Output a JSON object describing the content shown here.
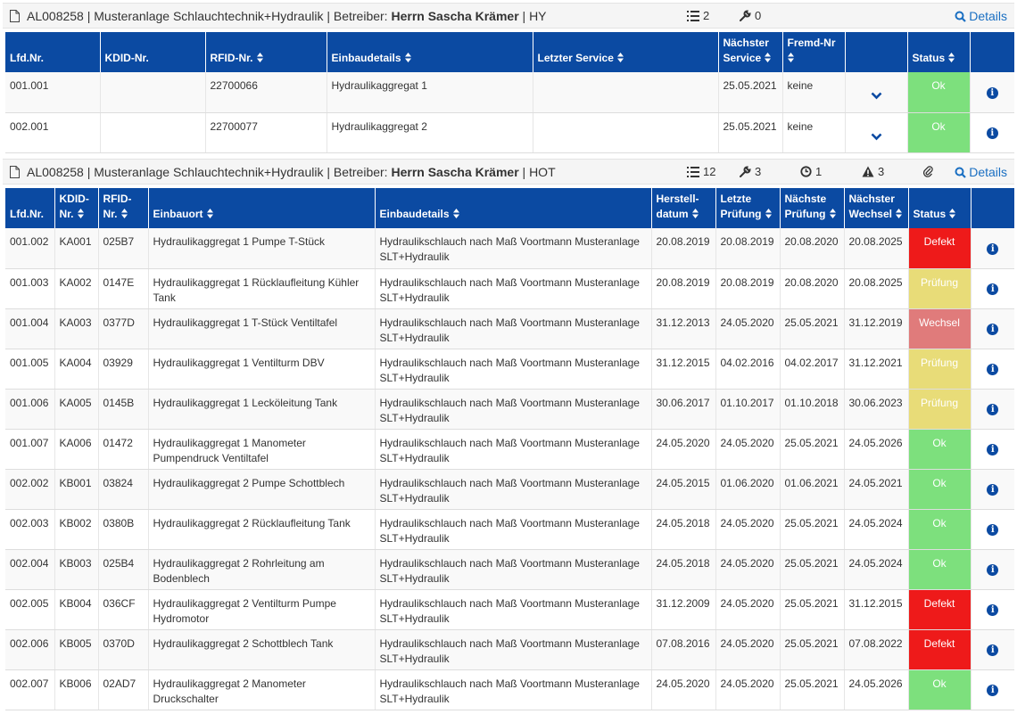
{
  "colors": {
    "header_bg": "#0b4aa2",
    "link": "#1a6fc2",
    "ok": "#7de07d",
    "defekt": "#ee1a1a",
    "pruefung": "#e8dc78",
    "wechsel": "#e07b7b"
  },
  "panel1": {
    "title_prefix": "AL008258 | Musteranlage Schlauchtechnik+Hydraulik | Betreiber: ",
    "operator": "Herrn Sascha Krämer",
    "title_suffix": " | HY",
    "list_count": "2",
    "wrench_count": "0",
    "details_label": "Details",
    "headers": [
      "Lfd.Nr.",
      "KDID-Nr.",
      "RFID-Nr.",
      "Einbaudetails",
      "Letzter Service",
      "Nächster Service",
      "Fremd-Nr",
      "",
      "Status",
      ""
    ],
    "rows": [
      {
        "lfd": "001.001",
        "kdid": "",
        "rfid": "22700066",
        "details": "Hydraulikaggregat 1",
        "last_service": "",
        "next_service": "25.05.2021",
        "fremd": "keine",
        "status": "Ok",
        "status_class": "ok"
      },
      {
        "lfd": "002.001",
        "kdid": "",
        "rfid": "22700077",
        "details": "Hydraulikaggregat 2",
        "last_service": "",
        "next_service": "25.05.2021",
        "fremd": "keine",
        "status": "Ok",
        "status_class": "ok"
      }
    ]
  },
  "panel2": {
    "title_prefix": "AL008258 | Musteranlage Schlauchtechnik+Hydraulik | Betreiber: ",
    "operator": "Herrn Sascha Krämer",
    "title_suffix": " | HOT",
    "list_count": "12",
    "wrench_count": "3",
    "clock_count": "1",
    "warn_count": "3",
    "details_label": "Details",
    "headers": [
      "Lfd.Nr.",
      "KDID-Nr.",
      "RFID-Nr.",
      "Einbauort",
      "Einbaudetails",
      "Herstell-datum",
      "Letzte Prüfung",
      "Nächste Prüfung",
      "Nächster Wechsel",
      "Status",
      ""
    ],
    "rows": [
      {
        "lfd": "001.002",
        "kdid": "KA001",
        "rfid": "025B7",
        "ort": "Hydraulikaggregat 1 Pumpe T-Stück",
        "details": "Hydraulikschlauch nach Maß Voortmann Musteranlage SLT+Hydraulik",
        "herstell": "20.08.2019",
        "letzte": "20.08.2019",
        "naechste": "20.08.2020",
        "wechsel": "20.08.2025",
        "status": "Defekt",
        "status_class": "defekt"
      },
      {
        "lfd": "001.003",
        "kdid": "KA002",
        "rfid": "0147E",
        "ort": "Hydraulikaggregat 1 Rücklaufleitung Kühler Tank",
        "details": "Hydraulikschlauch nach Maß Voortmann Musteranlage SLT+Hydraulik",
        "herstell": "20.08.2019",
        "letzte": "20.08.2019",
        "naechste": "20.08.2020",
        "wechsel": "20.08.2025",
        "status": "Prüfung",
        "status_class": "pruefung"
      },
      {
        "lfd": "001.004",
        "kdid": "KA003",
        "rfid": "0377D",
        "ort": "Hydraulikaggregat 1 T-Stück Ventiltafel",
        "details": "Hydraulikschlauch nach Maß Voortmann Musteranlage SLT+Hydraulik",
        "herstell": "31.12.2013",
        "letzte": "24.05.2020",
        "naechste": "25.05.2021",
        "wechsel": "31.12.2019",
        "status": "Wechsel",
        "status_class": "wechsel"
      },
      {
        "lfd": "001.005",
        "kdid": "KA004",
        "rfid": "03929",
        "ort": "Hydraulikaggregat 1 Ventilturm DBV",
        "details": "Hydraulikschlauch nach Maß Voortmann Musteranlage SLT+Hydraulik",
        "herstell": "31.12.2015",
        "letzte": "04.02.2016",
        "naechste": "04.02.2017",
        "wechsel": "31.12.2021",
        "status": "Prüfung",
        "status_class": "pruefung"
      },
      {
        "lfd": "001.006",
        "kdid": "KA005",
        "rfid": "0145B",
        "ort": "Hydraulikaggregat 1 Lecköleitung Tank",
        "details": "Hydraulikschlauch nach Maß Voortmann Musteranlage SLT+Hydraulik",
        "herstell": "30.06.2017",
        "letzte": "01.10.2017",
        "naechste": "01.10.2018",
        "wechsel": "30.06.2023",
        "status": "Prüfung",
        "status_class": "pruefung"
      },
      {
        "lfd": "001.007",
        "kdid": "KA006",
        "rfid": "01472",
        "ort": "Hydraulikaggregat 1 Manometer Pumpendruck Ventiltafel",
        "details": "Hydraulikschlauch nach Maß Voortmann Musteranlage SLT+Hydraulik",
        "herstell": "24.05.2020",
        "letzte": "24.05.2020",
        "naechste": "25.05.2021",
        "wechsel": "24.05.2026",
        "status": "Ok",
        "status_class": "ok"
      },
      {
        "lfd": "002.002",
        "kdid": "KB001",
        "rfid": "03824",
        "ort": "Hydraulikaggregat 2 Pumpe Schottblech",
        "details": "Hydraulikschlauch nach Maß Voortmann Musteranlage SLT+Hydraulik",
        "herstell": "24.05.2015",
        "letzte": "01.06.2020",
        "naechste": "01.06.2021",
        "wechsel": "24.05.2021",
        "status": "Ok",
        "status_class": "ok"
      },
      {
        "lfd": "002.003",
        "kdid": "KB002",
        "rfid": "0380B",
        "ort": "Hydraulikaggregat 2 Rücklaufleitung Tank",
        "details": "Hydraulikschlauch nach Maß Voortmann Musteranlage SLT+Hydraulik",
        "herstell": "24.05.2018",
        "letzte": "24.05.2020",
        "naechste": "25.05.2021",
        "wechsel": "24.05.2024",
        "status": "Ok",
        "status_class": "ok"
      },
      {
        "lfd": "002.004",
        "kdid": "KB003",
        "rfid": "025B4",
        "ort": "Hydraulikaggregat 2 Rohrleitung am Bodenblech",
        "details": "Hydraulikschlauch nach Maß Voortmann Musteranlage SLT+Hydraulik",
        "herstell": "24.05.2018",
        "letzte": "24.05.2020",
        "naechste": "25.05.2021",
        "wechsel": "24.05.2024",
        "status": "Ok",
        "status_class": "ok"
      },
      {
        "lfd": "002.005",
        "kdid": "KB004",
        "rfid": "036CF",
        "ort": "Hydraulikaggregat 2 Ventilturm Pumpe Hydromotor",
        "details": "Hydraulikschlauch nach Maß Voortmann Musteranlage SLT+Hydraulik",
        "herstell": "31.12.2009",
        "letzte": "24.05.2020",
        "naechste": "25.05.2021",
        "wechsel": "31.12.2015",
        "status": "Defekt",
        "status_class": "defekt"
      },
      {
        "lfd": "002.006",
        "kdid": "KB005",
        "rfid": "0370D",
        "ort": "Hydraulikaggregat 2 Schottblech Tank",
        "details": "Hydraulikschlauch nach Maß Voortmann Musteranlage SLT+Hydraulik",
        "herstell": "07.08.2016",
        "letzte": "24.05.2020",
        "naechste": "25.05.2021",
        "wechsel": "07.08.2022",
        "status": "Defekt",
        "status_class": "defekt"
      },
      {
        "lfd": "002.007",
        "kdid": "KB006",
        "rfid": "02AD7",
        "ort": "Hydraulikaggregat 2 Manometer Druckschalter",
        "details": "Hydraulikschlauch nach Maß Voortmann Musteranlage SLT+Hydraulik",
        "herstell": "24.05.2020",
        "letzte": "24.05.2020",
        "naechste": "25.05.2021",
        "wechsel": "24.05.2026",
        "status": "Ok",
        "status_class": "ok"
      }
    ]
  }
}
